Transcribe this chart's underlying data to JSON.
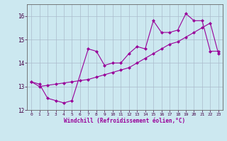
{
  "xlabel": "Windchill (Refroidissement éolien,°C)",
  "bg_color": "#cce8f0",
  "line_color": "#990099",
  "grid_color": "#aabbcc",
  "xlim": [
    -0.5,
    23.5
  ],
  "ylim": [
    12,
    16.5
  ],
  "xticks": [
    0,
    1,
    2,
    3,
    4,
    5,
    6,
    7,
    8,
    9,
    10,
    11,
    12,
    13,
    14,
    15,
    16,
    17,
    18,
    19,
    20,
    21,
    22,
    23
  ],
  "yticks": [
    12,
    13,
    14,
    15,
    16
  ],
  "curve1_x": [
    0,
    1,
    2,
    3,
    4,
    5,
    7,
    8,
    9,
    10,
    11,
    12,
    13,
    14,
    15,
    16,
    17,
    18,
    19,
    20,
    21,
    22,
    23
  ],
  "curve1_y": [
    13.2,
    13.1,
    12.5,
    12.4,
    12.3,
    12.4,
    14.6,
    14.5,
    13.9,
    14.0,
    14.0,
    14.4,
    14.7,
    14.6,
    15.8,
    15.3,
    15.3,
    15.4,
    16.1,
    15.8,
    15.8,
    14.5,
    14.5
  ],
  "curve2_x": [
    0,
    1,
    2,
    3,
    4,
    5,
    6,
    7,
    8,
    9,
    10,
    11,
    12,
    13,
    14,
    15,
    16,
    17,
    18,
    19,
    20,
    21,
    22,
    23
  ],
  "curve2_y": [
    13.2,
    13.0,
    13.05,
    13.1,
    13.15,
    13.2,
    13.25,
    13.3,
    13.4,
    13.5,
    13.6,
    13.7,
    13.8,
    14.0,
    14.2,
    14.4,
    14.6,
    14.8,
    14.9,
    15.1,
    15.3,
    15.5,
    15.7,
    14.4
  ]
}
